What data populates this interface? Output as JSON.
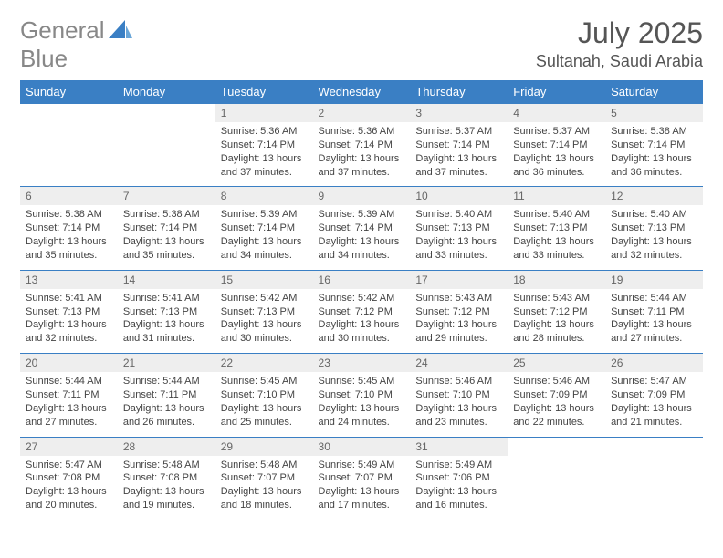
{
  "logo": {
    "text1": "General",
    "text2": "Blue"
  },
  "title": "July 2025",
  "location": "Sultanah, Saudi Arabia",
  "colors": {
    "brand_blue": "#3a7fc4",
    "header_bg": "#3a7fc4",
    "header_text": "#ffffff",
    "daynum_bg": "#eeeeee",
    "daynum_text": "#666666",
    "body_text": "#444444",
    "logo_gray": "#888888"
  },
  "weekdays": [
    "Sunday",
    "Monday",
    "Tuesday",
    "Wednesday",
    "Thursday",
    "Friday",
    "Saturday"
  ],
  "weeks": [
    [
      null,
      null,
      {
        "n": "1",
        "sr": "5:36 AM",
        "ss": "7:14 PM",
        "dl": "13 hours and 37 minutes."
      },
      {
        "n": "2",
        "sr": "5:36 AM",
        "ss": "7:14 PM",
        "dl": "13 hours and 37 minutes."
      },
      {
        "n": "3",
        "sr": "5:37 AM",
        "ss": "7:14 PM",
        "dl": "13 hours and 37 minutes."
      },
      {
        "n": "4",
        "sr": "5:37 AM",
        "ss": "7:14 PM",
        "dl": "13 hours and 36 minutes."
      },
      {
        "n": "5",
        "sr": "5:38 AM",
        "ss": "7:14 PM",
        "dl": "13 hours and 36 minutes."
      }
    ],
    [
      {
        "n": "6",
        "sr": "5:38 AM",
        "ss": "7:14 PM",
        "dl": "13 hours and 35 minutes."
      },
      {
        "n": "7",
        "sr": "5:38 AM",
        "ss": "7:14 PM",
        "dl": "13 hours and 35 minutes."
      },
      {
        "n": "8",
        "sr": "5:39 AM",
        "ss": "7:14 PM",
        "dl": "13 hours and 34 minutes."
      },
      {
        "n": "9",
        "sr": "5:39 AM",
        "ss": "7:14 PM",
        "dl": "13 hours and 34 minutes."
      },
      {
        "n": "10",
        "sr": "5:40 AM",
        "ss": "7:13 PM",
        "dl": "13 hours and 33 minutes."
      },
      {
        "n": "11",
        "sr": "5:40 AM",
        "ss": "7:13 PM",
        "dl": "13 hours and 33 minutes."
      },
      {
        "n": "12",
        "sr": "5:40 AM",
        "ss": "7:13 PM",
        "dl": "13 hours and 32 minutes."
      }
    ],
    [
      {
        "n": "13",
        "sr": "5:41 AM",
        "ss": "7:13 PM",
        "dl": "13 hours and 32 minutes."
      },
      {
        "n": "14",
        "sr": "5:41 AM",
        "ss": "7:13 PM",
        "dl": "13 hours and 31 minutes."
      },
      {
        "n": "15",
        "sr": "5:42 AM",
        "ss": "7:13 PM",
        "dl": "13 hours and 30 minutes."
      },
      {
        "n": "16",
        "sr": "5:42 AM",
        "ss": "7:12 PM",
        "dl": "13 hours and 30 minutes."
      },
      {
        "n": "17",
        "sr": "5:43 AM",
        "ss": "7:12 PM",
        "dl": "13 hours and 29 minutes."
      },
      {
        "n": "18",
        "sr": "5:43 AM",
        "ss": "7:12 PM",
        "dl": "13 hours and 28 minutes."
      },
      {
        "n": "19",
        "sr": "5:44 AM",
        "ss": "7:11 PM",
        "dl": "13 hours and 27 minutes."
      }
    ],
    [
      {
        "n": "20",
        "sr": "5:44 AM",
        "ss": "7:11 PM",
        "dl": "13 hours and 27 minutes."
      },
      {
        "n": "21",
        "sr": "5:44 AM",
        "ss": "7:11 PM",
        "dl": "13 hours and 26 minutes."
      },
      {
        "n": "22",
        "sr": "5:45 AM",
        "ss": "7:10 PM",
        "dl": "13 hours and 25 minutes."
      },
      {
        "n": "23",
        "sr": "5:45 AM",
        "ss": "7:10 PM",
        "dl": "13 hours and 24 minutes."
      },
      {
        "n": "24",
        "sr": "5:46 AM",
        "ss": "7:10 PM",
        "dl": "13 hours and 23 minutes."
      },
      {
        "n": "25",
        "sr": "5:46 AM",
        "ss": "7:09 PM",
        "dl": "13 hours and 22 minutes."
      },
      {
        "n": "26",
        "sr": "5:47 AM",
        "ss": "7:09 PM",
        "dl": "13 hours and 21 minutes."
      }
    ],
    [
      {
        "n": "27",
        "sr": "5:47 AM",
        "ss": "7:08 PM",
        "dl": "13 hours and 20 minutes."
      },
      {
        "n": "28",
        "sr": "5:48 AM",
        "ss": "7:08 PM",
        "dl": "13 hours and 19 minutes."
      },
      {
        "n": "29",
        "sr": "5:48 AM",
        "ss": "7:07 PM",
        "dl": "13 hours and 18 minutes."
      },
      {
        "n": "30",
        "sr": "5:49 AM",
        "ss": "7:07 PM",
        "dl": "13 hours and 17 minutes."
      },
      {
        "n": "31",
        "sr": "5:49 AM",
        "ss": "7:06 PM",
        "dl": "13 hours and 16 minutes."
      },
      null,
      null
    ]
  ],
  "labels": {
    "sunrise": "Sunrise: ",
    "sunset": "Sunset: ",
    "daylight": "Daylight: "
  }
}
